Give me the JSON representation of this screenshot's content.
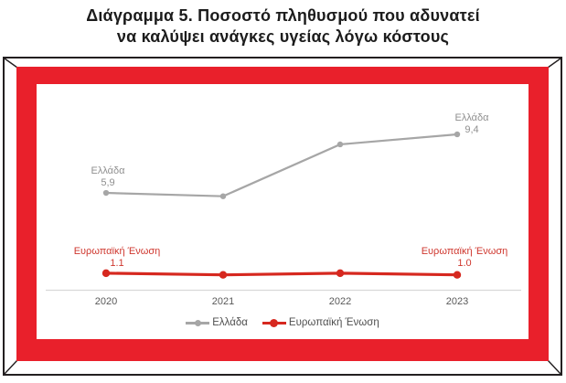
{
  "title": {
    "line1": "Διάγραμμα 5. Ποσοστό πληθυσμού που αδυνατεί",
    "line2": "να καλύψει ανάγκες υγείας λόγω κόστους"
  },
  "frame": {
    "band_color": "#e9202b",
    "border_color": "#231f20"
  },
  "chart": {
    "x_axis": {
      "labels": [
        "2020",
        "2021",
        "2022",
        "2023"
      ]
    },
    "axis_line_color": "#d9d9d9",
    "legend": [
      {
        "label": "Ελλάδα",
        "color": "#a6a6a6"
      },
      {
        "label": "Ευρωπαϊκή Ένωση",
        "color": "#d6281f"
      }
    ],
    "annotations": {
      "greece_first": {
        "name": "Ελλάδα",
        "value": "5,9"
      },
      "greece_last": {
        "name": "Ελλάδα",
        "value": "9,4"
      },
      "eu_first": {
        "name": "Ευρωπαϊκή Ένωση",
        "value": "1.1"
      },
      "eu_last": {
        "name": "Ευρωπαϊκή Ένωση",
        "value": "1.0"
      }
    }
  },
  "chart_data": {
    "type": "line",
    "title": "Διάγραμμα 5. Ποσοστό πληθυσμού που αδυνατεί να καλύψει ανάγκες υγείας λόγω κόστους",
    "categories": [
      2020,
      2021,
      2022,
      2023
    ],
    "series": [
      {
        "name": "Ελλάδα",
        "color": "#a6a6a6",
        "values": [
          5.9,
          5.7,
          8.8,
          9.4
        ]
      },
      {
        "name": "Ευρωπαϊκή Ένωση",
        "color": "#d6281f",
        "values": [
          1.1,
          1.0,
          1.1,
          1.0
        ]
      }
    ],
    "data_labels_shown": {
      "Ελλάδα": [
        "5,9",
        "9,4"
      ],
      "Ευρωπαϊκή Ένωση": [
        "1.1",
        "1.0"
      ]
    },
    "xlabel": "",
    "ylabel": "",
    "ylim": [
      0,
      12
    ],
    "grid": false,
    "legend_position": "bottom"
  }
}
